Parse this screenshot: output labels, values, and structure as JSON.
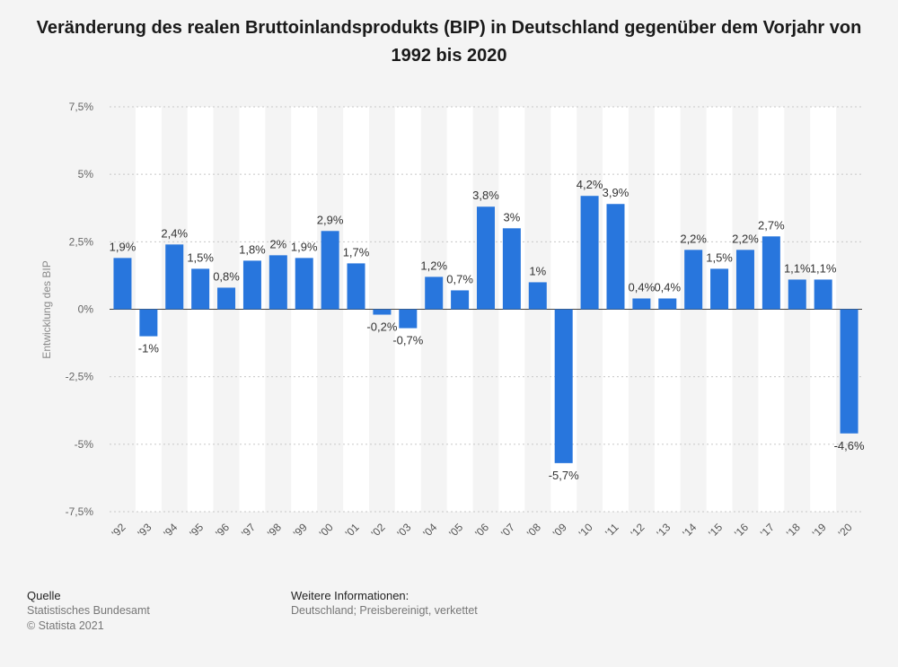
{
  "chart_data": {
    "type": "bar",
    "title": "Veränderung des realen Bruttoinlandsprodukts (BIP) in Deutschland gegenüber dem Vorjahr von 1992 bis 2020",
    "ylabel": "Entwicklung des BIP",
    "xlabel": "",
    "ylim": [
      -7.5,
      7.5
    ],
    "yticks": [
      {
        "value": 7.5,
        "label": "7,5%"
      },
      {
        "value": 5,
        "label": "5%"
      },
      {
        "value": 2.5,
        "label": "2,5%"
      },
      {
        "value": 0,
        "label": "0%"
      },
      {
        "value": -2.5,
        "label": "-2,5%"
      },
      {
        "value": -5,
        "label": "-5%"
      },
      {
        "value": -7.5,
        "label": "-7,5%"
      }
    ],
    "grid": true,
    "bar_color": "#2876dd",
    "categories": [
      "'92",
      "'93",
      "'94",
      "'95",
      "'96",
      "'97",
      "'98",
      "'99",
      "'00",
      "'01",
      "'02",
      "'03",
      "'04",
      "'05",
      "'06",
      "'07",
      "'08",
      "'09",
      "'10",
      "'11",
      "'12",
      "'13",
      "'14",
      "'15",
      "'16",
      "'17",
      "'18",
      "'19",
      "'20"
    ],
    "values": [
      1.9,
      -1,
      2.4,
      1.5,
      0.8,
      1.8,
      2,
      1.9,
      2.9,
      1.7,
      -0.2,
      -0.7,
      1.2,
      0.7,
      3.8,
      3,
      1,
      -5.7,
      4.2,
      3.9,
      0.4,
      0.4,
      2.2,
      1.5,
      2.2,
      2.7,
      1.1,
      1.1,
      -4.6
    ],
    "value_labels": [
      "1,9%",
      "-1%",
      "2,4%",
      "1,5%",
      "0,8%",
      "1,8%",
      "2%",
      "1,9%",
      "2,9%",
      "1,7%",
      "-0,2%",
      "-0,7%",
      "1,2%",
      "0,7%",
      "3,8%",
      "3%",
      "1%",
      "-5,7%",
      "4,2%",
      "3,9%",
      "0,4%",
      "0,4%",
      "2,2%",
      "1,5%",
      "2,2%",
      "2,7%",
      "1,1%",
      "1,1%",
      "-4,6%"
    ]
  },
  "footer": {
    "source_heading": "Quelle",
    "source_text": "Statistisches Bundesamt",
    "copyright": "© Statista 2021",
    "info_heading": "Weitere Informationen:",
    "info_text": "Deutschland; Preisbereinigt, verkettet"
  }
}
